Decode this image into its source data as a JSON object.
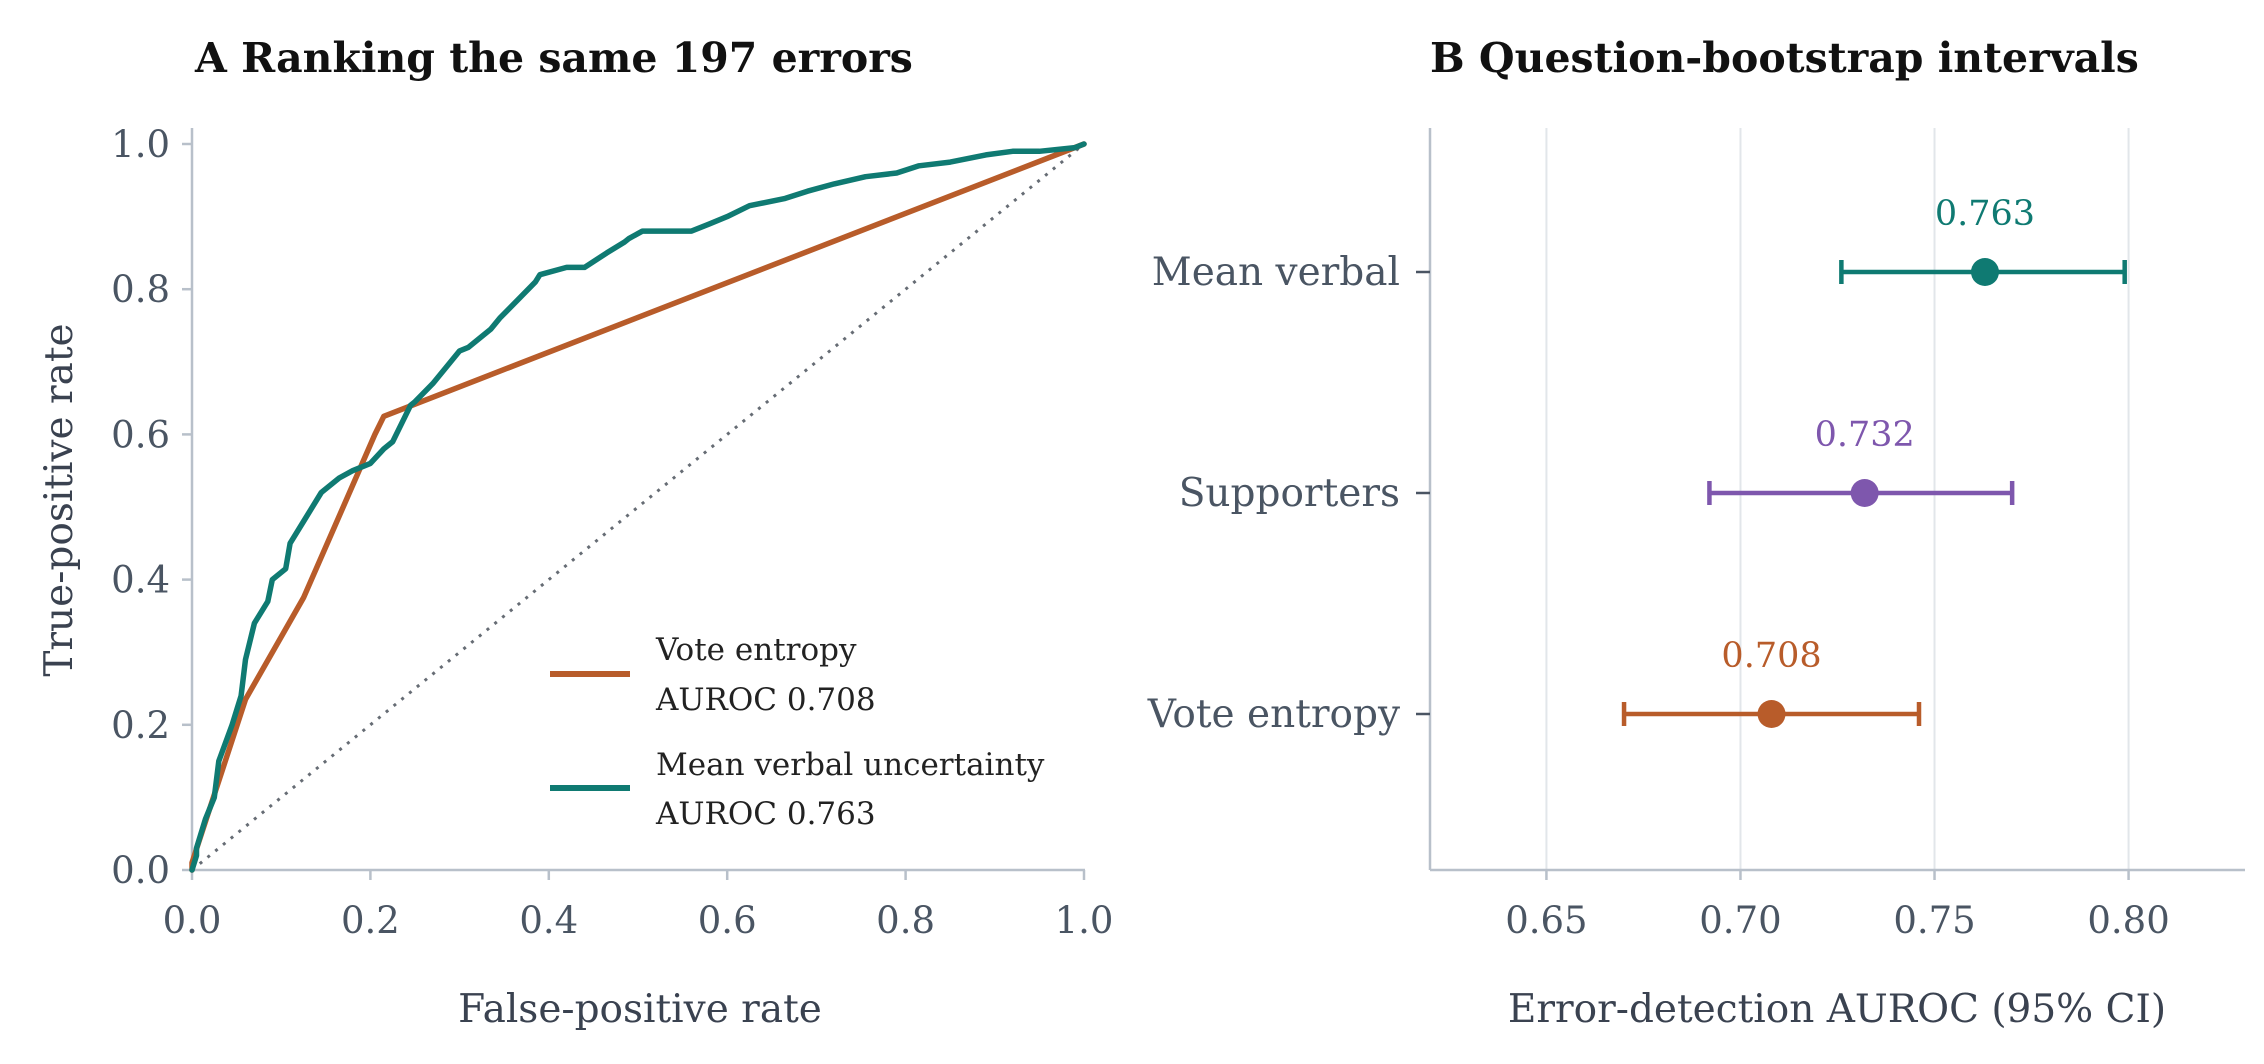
{
  "panel_a": {
    "title": "A  Ranking the same 197 errors",
    "xlabel": "False-positive rate",
    "ylabel": "True-positive rate",
    "xticks": [
      "0.0",
      "0.2",
      "0.4",
      "0.6",
      "0.8",
      "1.0"
    ],
    "yticks": [
      "0.0",
      "0.2",
      "0.4",
      "0.6",
      "0.8",
      "1.0"
    ],
    "legend": [
      {
        "line1": "Vote entropy",
        "line2": "AUROC 0.708",
        "color": "#b85c2a"
      },
      {
        "line1": "Mean verbal uncertainty",
        "line2": "AUROC 0.763",
        "color": "#0f7a72"
      }
    ]
  },
  "panel_b": {
    "title": "B  Question-bootstrap intervals",
    "xlabel": "Error-detection AUROC (95% CI)",
    "xticks": [
      "0.65",
      "0.70",
      "0.75",
      "0.80"
    ],
    "categories": [
      "Mean verbal",
      "Supporters",
      "Vote entropy"
    ],
    "value_labels": [
      "0.763",
      "0.732",
      "0.708"
    ]
  },
  "chart_data": [
    {
      "type": "line",
      "title": "A  Ranking the same 197 errors",
      "xlabel": "False-positive rate",
      "ylabel": "True-positive rate",
      "xlim": [
        0,
        1
      ],
      "ylim": [
        0,
        1
      ],
      "grid": false,
      "legend_position": "bottom-right",
      "reference_line": "diagonal (chance)",
      "series": [
        {
          "name": "Vote entropy",
          "auroc": 0.708,
          "color": "#b85c2a",
          "x": [
            0.0,
            0.0,
            0.06,
            0.125,
            0.205,
            0.215,
            1.0
          ],
          "y": [
            0.0,
            0.01,
            0.235,
            0.375,
            0.6,
            0.625,
            1.0
          ]
        },
        {
          "name": "Mean verbal uncertainty",
          "auroc": 0.763,
          "color": "#0f7a72",
          "x": [
            0.0,
            0.005,
            0.005,
            0.015,
            0.025,
            0.03,
            0.045,
            0.055,
            0.06,
            0.07,
            0.085,
            0.09,
            0.105,
            0.11,
            0.125,
            0.145,
            0.165,
            0.18,
            0.2,
            0.215,
            0.225,
            0.245,
            0.25,
            0.27,
            0.29,
            0.3,
            0.31,
            0.335,
            0.345,
            0.365,
            0.385,
            0.39,
            0.42,
            0.44,
            0.465,
            0.485,
            0.49,
            0.505,
            0.525,
            0.56,
            0.58,
            0.6,
            0.625,
            0.665,
            0.69,
            0.72,
            0.755,
            0.79,
            0.815,
            0.85,
            0.89,
            0.92,
            0.95,
            0.99,
            1.0
          ],
          "y": [
            0.0,
            0.02,
            0.03,
            0.07,
            0.1,
            0.15,
            0.2,
            0.24,
            0.29,
            0.34,
            0.37,
            0.4,
            0.415,
            0.45,
            0.48,
            0.52,
            0.54,
            0.55,
            0.56,
            0.58,
            0.59,
            0.64,
            0.645,
            0.67,
            0.7,
            0.715,
            0.72,
            0.745,
            0.76,
            0.785,
            0.81,
            0.82,
            0.83,
            0.83,
            0.85,
            0.865,
            0.87,
            0.88,
            0.88,
            0.88,
            0.89,
            0.9,
            0.915,
            0.925,
            0.935,
            0.945,
            0.955,
            0.96,
            0.97,
            0.975,
            0.985,
            0.99,
            0.99,
            0.995,
            1.0
          ]
        }
      ]
    },
    {
      "type": "scatter",
      "title": "B  Question-bootstrap intervals",
      "xlabel": "Error-detection AUROC (95% CI)",
      "xlim": [
        0.62,
        0.83
      ],
      "grid": true,
      "categories": [
        "Mean verbal",
        "Supporters",
        "Vote entropy"
      ],
      "series": [
        {
          "name": "Mean verbal",
          "value": 0.763,
          "ci": [
            0.726,
            0.799
          ],
          "color": "#0f7a72"
        },
        {
          "name": "Supporters",
          "value": 0.732,
          "ci": [
            0.692,
            0.77
          ],
          "color": "#7e57ad"
        },
        {
          "name": "Vote entropy",
          "value": 0.708,
          "ci": [
            0.67,
            0.746
          ],
          "color": "#b85c2a"
        }
      ]
    }
  ]
}
